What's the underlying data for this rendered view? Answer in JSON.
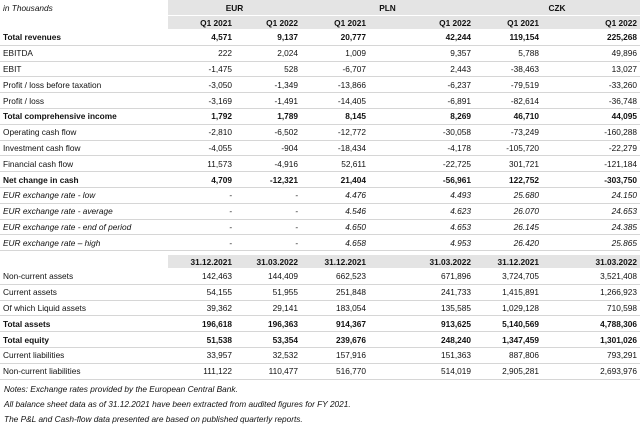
{
  "header": {
    "unit": "in Thousands",
    "currencies": [
      "EUR",
      "PLN",
      "CZK"
    ],
    "periods": [
      "Q1 2021",
      "Q1 2022",
      "Q1 2021",
      "Q1 2022",
      "Q1 2021",
      "Q1 2022"
    ]
  },
  "income_table": {
    "rows": [
      {
        "label": "Total revenues",
        "values": [
          "4,571",
          "9,137",
          "20,777",
          "42,244",
          "119,154",
          "225,268"
        ]
      },
      {
        "label": "EBITDA",
        "values": [
          "222",
          "2,024",
          "1,009",
          "9,357",
          "5,788",
          "49,896"
        ]
      },
      {
        "label": "EBIT",
        "values": [
          "-1,475",
          "528",
          "-6,707",
          "2,443",
          "-38,463",
          "13,027"
        ]
      },
      {
        "label": "Profit / loss before taxation",
        "values": [
          "-3,050",
          "-1,349",
          "-13,866",
          "-6,237",
          "-79,519",
          "-33,260"
        ]
      },
      {
        "label": "Profit / loss",
        "values": [
          "-3,169",
          "-1,491",
          "-14,405",
          "-6,891",
          "-82,614",
          "-36,748"
        ]
      },
      {
        "label": "Total comprehensive income",
        "values": [
          "1,792",
          "1,789",
          "8,145",
          "8,269",
          "46,710",
          "44,095"
        ]
      },
      {
        "label": "Operating cash flow",
        "values": [
          "-2,810",
          "-6,502",
          "-12,772",
          "-30,058",
          "-73,249",
          "-160,288"
        ]
      },
      {
        "label": "Investment cash flow",
        "values": [
          "-4,055",
          "-904",
          "-18,434",
          "-4,178",
          "-105,720",
          "-22,279"
        ]
      },
      {
        "label": "Financial cash flow",
        "values": [
          "11,573",
          "-4,916",
          "52,611",
          "-22,725",
          "301,721",
          "-121,184"
        ]
      },
      {
        "label": "Net change in cash",
        "values": [
          "4,709",
          "-12,321",
          "21,404",
          "-56,961",
          "122,752",
          "-303,750"
        ]
      },
      {
        "label": "EUR exchange rate - low",
        "values": [
          "-",
          "-",
          "4.476",
          "4.493",
          "25.680",
          "24.150"
        ]
      },
      {
        "label": "EUR exchange rate - average",
        "values": [
          "-",
          "-",
          "4.546",
          "4.623",
          "26.070",
          "24.653"
        ]
      },
      {
        "label": "EUR exchange rate - end of period",
        "values": [
          "-",
          "-",
          "4.650",
          "4.653",
          "26.145",
          "24.385"
        ]
      },
      {
        "label": "EUR exchange rate – high",
        "values": [
          "-",
          "-",
          "4.658",
          "4.953",
          "26.420",
          "25.865"
        ]
      }
    ]
  },
  "balance_table": {
    "periods": [
      "31.12.2021",
      "31.03.2022",
      "31.12.2021",
      "31.03.2022",
      "31.12.2021",
      "31.03.2022"
    ],
    "rows": [
      {
        "label": "Non-current assets",
        "values": [
          "142,463",
          "144,409",
          "662,523",
          "671,896",
          "3,724,705",
          "3,521,408"
        ]
      },
      {
        "label": "Current assets",
        "values": [
          "54,155",
          "51,955",
          "251,848",
          "241,733",
          "1,415,891",
          "1,266,923"
        ]
      },
      {
        "label": "Of which Liquid assets",
        "values": [
          "39,362",
          "29,141",
          "183,054",
          "135,585",
          "1,029,128",
          "710,598"
        ]
      },
      {
        "label": "Total assets",
        "values": [
          "196,618",
          "196,363",
          "914,367",
          "913,625",
          "5,140,569",
          "4,788,306"
        ]
      },
      {
        "label": "Total equity",
        "values": [
          "51,538",
          "53,354",
          "239,676",
          "248,240",
          "1,347,459",
          "1,301,026"
        ]
      },
      {
        "label": "Current liabilities",
        "values": [
          "33,957",
          "32,532",
          "157,916",
          "151,363",
          "887,806",
          "793,291"
        ]
      },
      {
        "label": "Non-current liabilities",
        "values": [
          "111,122",
          "110,477",
          "516,770",
          "514,019",
          "2,905,281",
          "2,693,976"
        ]
      }
    ]
  },
  "notes": [
    "Notes: Exchange rates provided by the European Central Bank.",
    "All balance sheet data as of 31.12.2021 have been extracted from audited figures for FY 2021.",
    "The P&L and Cash-flow data presented are based on published quarterly reports."
  ]
}
